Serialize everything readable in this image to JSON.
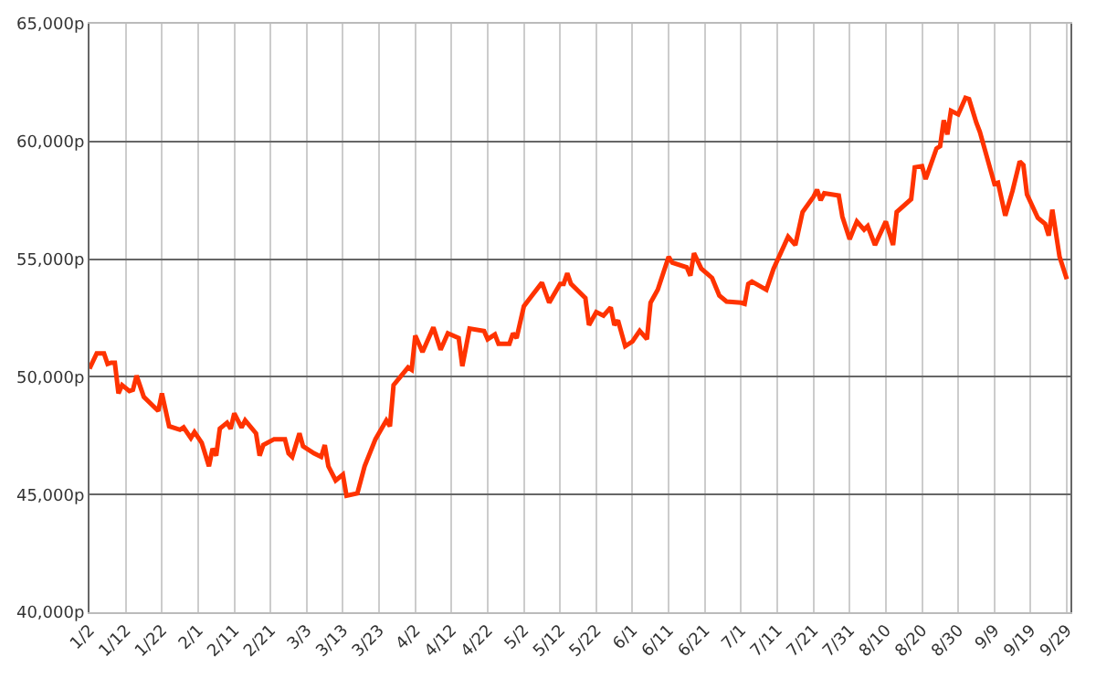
{
  "chart_data": {
    "type": "line",
    "grid": true,
    "marker": "none",
    "line_style": "solid",
    "x": [
      "--01-02",
      "--01-04",
      "--01-06",
      "--01-07",
      "--01-08",
      "--01-09",
      "--01-10",
      "--01-11",
      "--01-13",
      "--01-14",
      "--01-15",
      "--01-17",
      "--01-21",
      "--01-22",
      "--01-24",
      "--01-27",
      "--01-28",
      "--01-30",
      "--01-31",
      "--02-02",
      "--02-04",
      "--02-05",
      "--02-06",
      "--02-07",
      "--02-09",
      "--02-10",
      "--02-11",
      "--02-13",
      "--02-14",
      "--02-17",
      "--02-18",
      "--02-19",
      "--02-22",
      "--02-25",
      "--02-26",
      "--02-27",
      "--03-01",
      "--03-02",
      "--03-05",
      "--03-07",
      "--03-08",
      "--03-09",
      "--03-11",
      "--03-13",
      "--03-14",
      "--03-17",
      "--03-19",
      "--03-22",
      "--03-25",
      "--03-26",
      "--03-27",
      "--03-31",
      "--04-01",
      "--04-02",
      "--04-04",
      "--04-07",
      "--04-09",
      "--04-11",
      "--04-14",
      "--04-15",
      "--04-17",
      "--04-21",
      "--04-22",
      "--04-24",
      "--04-25",
      "--04-28",
      "--04-29",
      "--04-30",
      "--05-02",
      "--05-04",
      "--05-07",
      "--05-09",
      "--05-12",
      "--05-13",
      "--05-14",
      "--05-15",
      "--05-19",
      "--05-20",
      "--05-22",
      "--05-24",
      "--05-26",
      "--05-27",
      "--05-28",
      "--05-30",
      "--06-01",
      "--06-03",
      "--06-05",
      "--06-06",
      "--06-08",
      "--06-11",
      "--06-12",
      "--06-16",
      "--06-17",
      "--06-18",
      "--06-20",
      "--06-23",
      "--06-25",
      "--06-27",
      "--07-01",
      "--07-02",
      "--07-03",
      "--07-04",
      "--07-08",
      "--07-10",
      "--07-14",
      "--07-16",
      "--07-18",
      "--07-21",
      "--07-22",
      "--07-23",
      "--07-24",
      "--07-28",
      "--07-29",
      "--07-31",
      "--08-02",
      "--08-04",
      "--08-05",
      "--08-07",
      "--08-10",
      "--08-12",
      "--08-13",
      "--08-17",
      "--08-18",
      "--08-20",
      "--08-21",
      "--08-24",
      "--08-25",
      "--08-26",
      "--08-27",
      "--08-28",
      "--08-30",
      "--09-01",
      "--09-02",
      "--09-04",
      "--09-05",
      "--09-09",
      "--09-10",
      "--09-12",
      "--09-14",
      "--09-16",
      "--09-17",
      "--09-18",
      "--09-21",
      "--09-23",
      "--09-24",
      "--09-25",
      "--09-27",
      "--09-29"
    ],
    "series": [
      {
        "color": "#ff3300",
        "values": [
          50350,
          51000,
          51000,
          50550,
          50600,
          50600,
          49300,
          49650,
          49400,
          49450,
          50050,
          49150,
          48550,
          49300,
          47900,
          47750,
          47850,
          47400,
          47650,
          47200,
          46200,
          46950,
          46650,
          47800,
          48050,
          47800,
          48450,
          47850,
          48150,
          47600,
          46650,
          47100,
          47350,
          47350,
          46750,
          46600,
          47600,
          47050,
          46750,
          46600,
          47100,
          46200,
          45600,
          45850,
          44950,
          45050,
          46200,
          47350,
          48150,
          47900,
          49650,
          50400,
          50300,
          51750,
          51050,
          52100,
          51150,
          51850,
          51650,
          50450,
          52050,
          51950,
          51600,
          51800,
          51400,
          51400,
          51850,
          51650,
          53000,
          53400,
          54000,
          53150,
          53950,
          53950,
          54400,
          53950,
          53350,
          52200,
          52750,
          52600,
          52950,
          52200,
          52400,
          51300,
          51500,
          51950,
          51600,
          53150,
          53700,
          55100,
          54850,
          54650,
          54300,
          55250,
          54600,
          54200,
          53450,
          53200,
          53150,
          53100,
          53950,
          54050,
          53700,
          54600,
          55950,
          55600,
          57000,
          57650,
          57950,
          57500,
          57800,
          57700,
          56800,
          55850,
          56600,
          56250,
          56400,
          55600,
          56600,
          55600,
          57000,
          57550,
          58900,
          58950,
          58400,
          59700,
          59800,
          60900,
          60300,
          61300,
          61150,
          61850,
          61800,
          60800,
          60400,
          58200,
          58250,
          56850,
          57900,
          59150,
          59000,
          57750,
          56750,
          56500,
          56000,
          57100,
          55100,
          54150
        ]
      }
    ],
    "xlim": [
      "--01-02",
      "--09-30"
    ],
    "xticks": [
      {
        "value": "--01-02",
        "label": "1/2"
      },
      {
        "value": "--01-12",
        "label": "1/12"
      },
      {
        "value": "--01-22",
        "label": "1/22"
      },
      {
        "value": "--02-01",
        "label": "2/1"
      },
      {
        "value": "--02-11",
        "label": "2/11"
      },
      {
        "value": "--02-21",
        "label": "2/21"
      },
      {
        "value": "--03-03",
        "label": "3/3"
      },
      {
        "value": "--03-13",
        "label": "3/13"
      },
      {
        "value": "--03-23",
        "label": "3/23"
      },
      {
        "value": "--04-02",
        "label": "4/2"
      },
      {
        "value": "--04-12",
        "label": "4/12"
      },
      {
        "value": "--04-22",
        "label": "4/22"
      },
      {
        "value": "--05-02",
        "label": "5/2"
      },
      {
        "value": "--05-12",
        "label": "5/12"
      },
      {
        "value": "--05-22",
        "label": "5/22"
      },
      {
        "value": "--06-01",
        "label": "6/1"
      },
      {
        "value": "--06-11",
        "label": "6/11"
      },
      {
        "value": "--06-21",
        "label": "6/21"
      },
      {
        "value": "--07-01",
        "label": "7/1"
      },
      {
        "value": "--07-11",
        "label": "7/11"
      },
      {
        "value": "--07-21",
        "label": "7/21"
      },
      {
        "value": "--07-31",
        "label": "7/31"
      },
      {
        "value": "--08-10",
        "label": "8/10"
      },
      {
        "value": "--08-20",
        "label": "8/20"
      },
      {
        "value": "--08-30",
        "label": "8/30"
      },
      {
        "value": "--09-09",
        "label": "9/9"
      },
      {
        "value": "--09-19",
        "label": "9/19"
      },
      {
        "value": "--09-29",
        "label": "9/29"
      }
    ],
    "ylim": [
      40000,
      65000
    ],
    "yticks": [
      {
        "value": 40000,
        "label": "40,000p"
      },
      {
        "value": 45000,
        "label": "45,000p"
      },
      {
        "value": 50000,
        "label": "50,000p"
      },
      {
        "value": 55000,
        "label": "55,000p"
      },
      {
        "value": 60000,
        "label": "60,000p"
      },
      {
        "value": 65000,
        "label": "65,000p"
      }
    ]
  }
}
